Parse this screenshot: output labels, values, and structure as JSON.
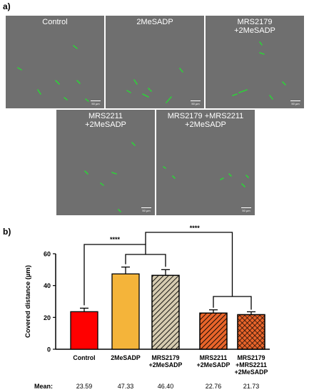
{
  "panel_a_label": "a)",
  "panel_b_label": "b)",
  "micrographs": [
    {
      "caption": "Control",
      "scale": "50 µm"
    },
    {
      "caption": "2MeSADP",
      "scale": "50 µm"
    },
    {
      "caption": "MRS2179\n+2MeSADP",
      "scale": "50 µm"
    },
    {
      "caption": "MRS2211\n+2MeSADP",
      "scale": "50 µm"
    },
    {
      "caption": "MRS2179 +MRS2211\n+2MeSADP",
      "scale": "50 µm"
    }
  ],
  "colors": {
    "micrograph_bg": "#6f6f6f",
    "cell_green": "#2fcf3a"
  },
  "chart_data": {
    "type": "bar",
    "categories": [
      "Control",
      "2MeSADP",
      "MRS2179\n+2MeSADP",
      "MRS2211\n+2MeSADP",
      "MRS2179\n+MRS2211\n+2MeSADP"
    ],
    "values": [
      23.59,
      47.33,
      46.4,
      22.76,
      21.73
    ],
    "errors": [
      2.2,
      4.3,
      3.6,
      2.0,
      1.8
    ],
    "colors": [
      "#ff0000",
      "#f4b43a",
      "#d6cbb0",
      "#e8642a",
      "#e8642a"
    ],
    "patterns": [
      "solid",
      "solid",
      "diagonal",
      "diagonal",
      "crosshatch"
    ],
    "ylabel": "Covered distance (µm)",
    "ylim": [
      0,
      60
    ],
    "yticks": [
      0,
      20,
      40,
      60
    ],
    "significance": [
      {
        "label": "****",
        "left_group": [
          0
        ],
        "right_group": [
          1,
          2
        ]
      },
      {
        "label": "****",
        "left_group": [
          1,
          2
        ],
        "right_group": [
          3,
          4
        ]
      }
    ],
    "means_label": "Mean:",
    "means": [
      "23.59",
      "47.33",
      "46.40",
      "22.76",
      "21.73"
    ]
  }
}
